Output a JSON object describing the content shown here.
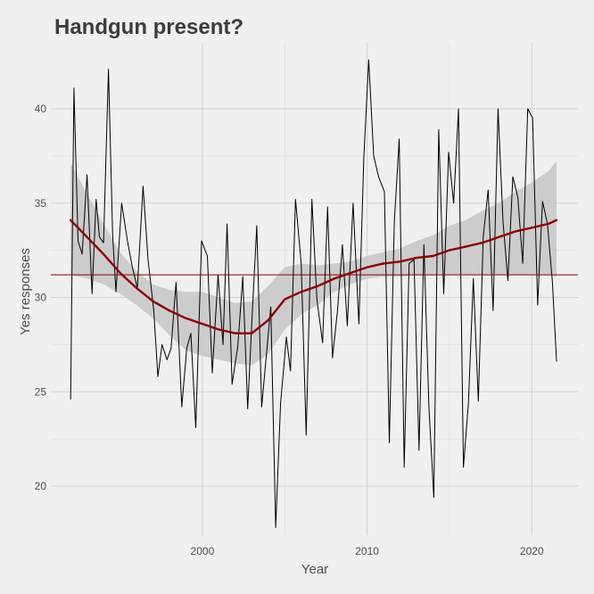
{
  "chart_data": {
    "type": "line",
    "title": "Handgun present?",
    "xlabel": "Year",
    "ylabel": "Yes responses",
    "xlim": [
      1990.8,
      2022.8
    ],
    "ylim": [
      17.4,
      43.5
    ],
    "x_ticks": [
      2000,
      2010,
      2020
    ],
    "y_ticks": [
      20,
      25,
      30,
      35,
      40
    ],
    "grid": true,
    "reference_line": {
      "y": 31.2,
      "color": "#8b0000"
    },
    "series": [
      {
        "style": "raw-line",
        "color": "#000000",
        "x": [
          1992.0,
          1992.2,
          1992.45,
          1992.7,
          1993.0,
          1993.3,
          1993.55,
          1993.75,
          1994.0,
          1994.3,
          1994.55,
          1994.75,
          1995.1,
          1995.45,
          1995.75,
          1996.05,
          1996.4,
          1996.7,
          1997.05,
          1997.3,
          1997.55,
          1997.85,
          1998.1,
          1998.4,
          1998.75,
          1999.05,
          1999.3,
          1999.6,
          1999.95,
          2000.3,
          2000.6,
          2000.95,
          2001.25,
          2001.5,
          2001.8,
          2002.15,
          2002.45,
          2002.75,
          2003.05,
          2003.3,
          2003.6,
          2003.85,
          2004.15,
          2004.45,
          2004.75,
          2005.1,
          2005.35,
          2005.65,
          2006.0,
          2006.3,
          2006.65,
          2006.95,
          2007.3,
          2007.6,
          2007.9,
          2008.2,
          2008.5,
          2008.8,
          2009.15,
          2009.5,
          2009.8,
          2010.1,
          2010.4,
          2010.7,
          2011.05,
          2011.35,
          2011.65,
          2011.95,
          2012.25,
          2012.55,
          2012.85,
          2013.15,
          2013.45,
          2013.75,
          2014.05,
          2014.35,
          2014.65,
          2014.95,
          2015.25,
          2015.55,
          2015.85,
          2016.15,
          2016.45,
          2016.75,
          2017.05,
          2017.35,
          2017.65,
          2017.95,
          2018.25,
          2018.55,
          2018.85,
          2019.15,
          2019.45,
          2019.75,
          2020.05,
          2020.35,
          2020.65,
          2020.95,
          2021.25,
          2021.5
        ],
        "y": [
          24.6,
          41.1,
          33.0,
          32.3,
          36.5,
          30.2,
          35.2,
          33.2,
          32.9,
          42.1,
          33.3,
          30.3,
          35.0,
          33.0,
          31.6,
          30.5,
          35.9,
          32.0,
          29.3,
          25.8,
          27.5,
          26.7,
          27.3,
          30.8,
          24.2,
          27.3,
          28.1,
          23.1,
          33.0,
          32.2,
          26.0,
          31.2,
          27.5,
          33.9,
          25.4,
          27.4,
          31.1,
          24.1,
          29.5,
          33.8,
          24.2,
          26.6,
          29.5,
          17.8,
          24.4,
          27.9,
          26.1,
          35.2,
          31.8,
          22.7,
          35.2,
          29.9,
          27.6,
          34.8,
          26.8,
          29.3,
          32.8,
          28.5,
          35.0,
          28.6,
          37.4,
          42.6,
          37.5,
          36.4,
          35.6,
          22.3,
          34.0,
          38.4,
          21.0,
          31.8,
          32.0,
          21.9,
          32.8,
          24.2,
          19.4,
          38.9,
          30.2,
          37.7,
          35.0,
          40.0,
          21.0,
          24.4,
          31.0,
          24.5,
          33.2,
          35.7,
          29.3,
          40.0,
          34.0,
          30.9,
          36.4,
          35.3,
          31.8,
          40.0,
          39.5,
          29.6,
          35.1,
          33.9,
          30.8,
          26.6
        ]
      },
      {
        "style": "smooth",
        "color": "#8b0000",
        "x": [
          1992.0,
          1993.0,
          1994.0,
          1995.0,
          1996.0,
          1997.0,
          1998.0,
          1999.0,
          2000.0,
          2001.0,
          2002.0,
          2003.0,
          2004.0,
          2005.0,
          2006.0,
          2007.0,
          2008.0,
          2009.0,
          2010.0,
          2011.0,
          2012.0,
          2013.0,
          2014.0,
          2015.0,
          2016.0,
          2017.0,
          2018.0,
          2019.0,
          2020.0,
          2021.0,
          2021.5
        ],
        "y": [
          34.1,
          33.2,
          32.3,
          31.3,
          30.5,
          29.8,
          29.3,
          28.9,
          28.6,
          28.3,
          28.1,
          28.1,
          28.8,
          29.9,
          30.3,
          30.6,
          31.0,
          31.3,
          31.6,
          31.8,
          31.9,
          32.1,
          32.2,
          32.5,
          32.7,
          32.9,
          33.2,
          33.5,
          33.7,
          33.9,
          34.1
        ],
        "ci_lower": [
          31.2,
          31.0,
          30.7,
          30.2,
          29.6,
          28.9,
          28.0,
          27.2,
          26.9,
          26.7,
          26.5,
          26.4,
          27.0,
          28.3,
          29.1,
          29.6,
          30.3,
          30.7,
          31.0,
          31.1,
          31.1,
          31.2,
          31.2,
          31.2,
          31.2,
          31.2,
          31.2,
          31.2,
          31.2,
          31.2,
          31.1
        ],
        "ci_upper": [
          37.1,
          35.5,
          33.9,
          32.4,
          31.4,
          30.7,
          30.4,
          30.3,
          30.3,
          30.0,
          29.7,
          29.8,
          30.6,
          31.6,
          31.8,
          31.7,
          31.8,
          31.9,
          32.2,
          32.4,
          32.6,
          33.0,
          33.3,
          33.8,
          34.1,
          34.6,
          35.0,
          35.6,
          36.1,
          36.7,
          37.2
        ],
        "ci_color": "#c8c8c8"
      }
    ]
  }
}
